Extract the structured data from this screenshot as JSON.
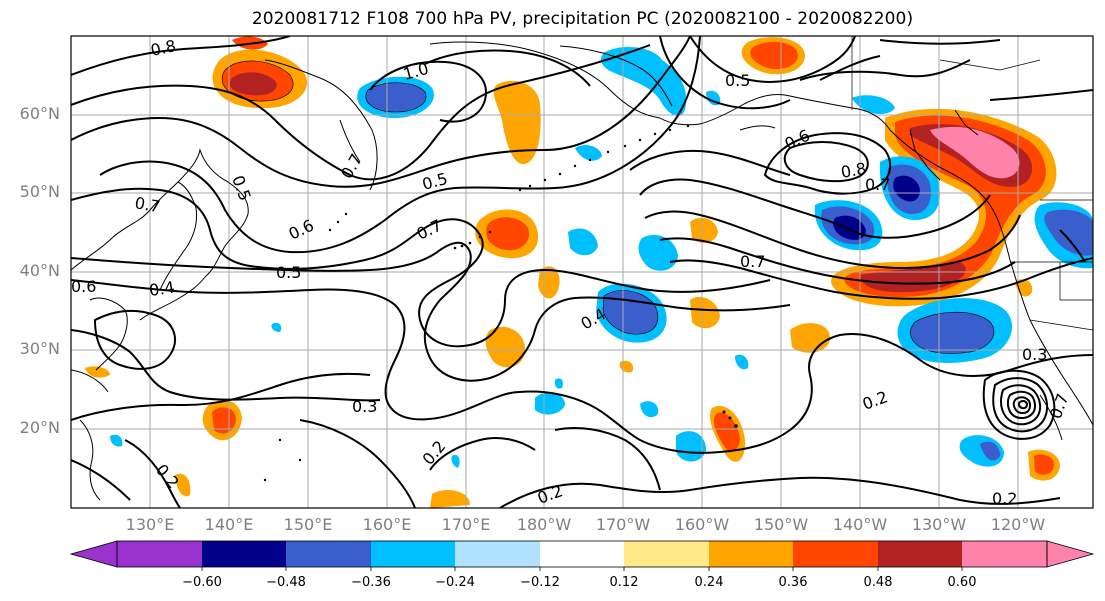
{
  "title": "2020081712 F108 700 hPa PV, precipitation PC (2020082100 - 2020082200)",
  "latitude_labels": [
    "60°N",
    "50°N",
    "40°N",
    "30°N",
    "20°N"
  ],
  "longitude_labels": [
    "130°E",
    "140°E",
    "150°E",
    "160°E",
    "170°E",
    "180°W",
    "170°W",
    "160°W",
    "150°W",
    "140°W",
    "130°W",
    "120°W"
  ],
  "contour_labels": [
    "0.8",
    "1.0",
    "0.5",
    "0.6",
    "0.8",
    "0.7",
    "0.7",
    "0.5",
    "0.5",
    "0.7",
    "0.6",
    "0.7",
    "0.7",
    "0.5",
    "0.4",
    "0.4",
    "0.6",
    "0.3",
    "0.2",
    "0.2",
    "0.2",
    "0.2",
    "0.2",
    "0.3",
    "0.7"
  ],
  "colorbar": {
    "tick_labels": [
      "−0.60",
      "−0.48",
      "−0.36",
      "−0.24",
      "−0.12",
      "0.12",
      "0.24",
      "0.36",
      "0.48",
      "0.60"
    ],
    "colors": [
      "#9a32cd",
      "#00008b",
      "#3a5fcd",
      "#00bfff",
      "#b0e2ff",
      "#ffffff",
      "#ffe989",
      "#ffa500",
      "#ff4500",
      "#b22222",
      "#ff82ab"
    ]
  }
}
